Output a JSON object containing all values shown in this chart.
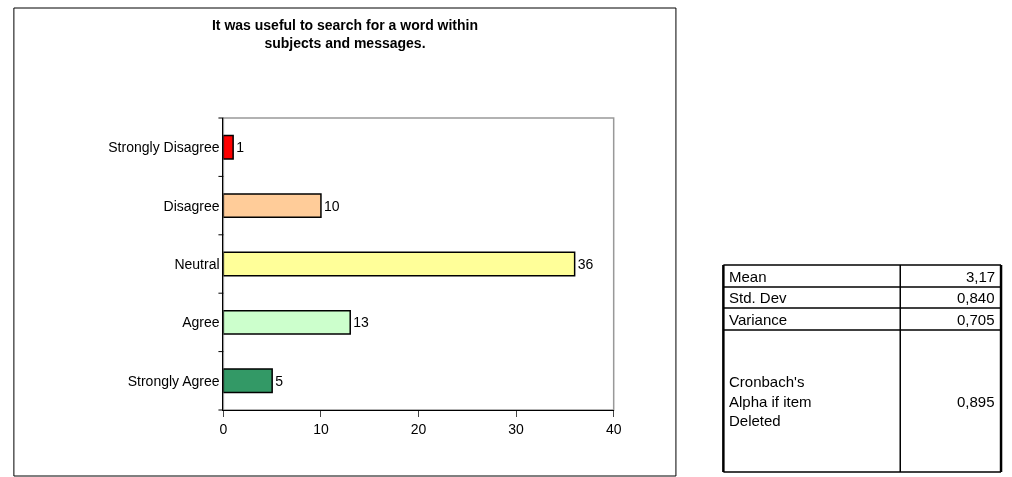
{
  "chart_data": {
    "type": "bar",
    "orientation": "horizontal",
    "title": "It was useful to search for a word within\nsubjects and messages.",
    "categories": [
      "Strongly Disagree",
      "Disagree",
      "Neutral",
      "Agree",
      "Strongly Agree"
    ],
    "values": [
      1,
      10,
      36,
      13,
      5
    ],
    "colors": [
      "#ff0000",
      "#ffcc99",
      "#ffff99",
      "#ccffcc",
      "#339966"
    ],
    "xlim": [
      0,
      40
    ],
    "xticks": [
      0,
      10,
      20,
      30,
      40
    ],
    "grid": false,
    "legend": false,
    "data_labels": true,
    "annotations": [
      "Mean",
      "3,17",
      "Std. Dev",
      "0,840",
      "Variance",
      "0,705",
      "Cronbach's\nAlpha if item\nDeleted",
      "0,895"
    ]
  }
}
